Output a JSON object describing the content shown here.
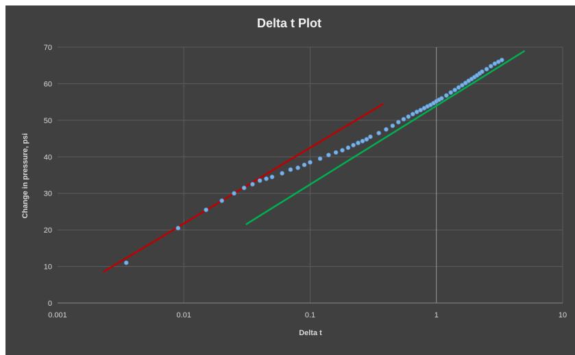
{
  "chart_data": {
    "type": "scatter",
    "title": "Delta t Plot",
    "xlabel": "Delta t",
    "ylabel": "Change in pressure, psi",
    "xscale": "log",
    "xlim": [
      0.001,
      10
    ],
    "ylim": [
      0,
      70
    ],
    "x_tick_labels": [
      "0.001",
      "0.01",
      "0.1",
      "1",
      "10"
    ],
    "y_tick_labels": [
      "0",
      "10",
      "20",
      "30",
      "40",
      "50",
      "60",
      "70"
    ],
    "grid": true,
    "legend": "none",
    "series": [
      {
        "marker": "circle",
        "color": "#5b9bd5",
        "x": [
          0.0035,
          0.009,
          0.015,
          0.02,
          0.025,
          0.03,
          0.035,
          0.04,
          0.045,
          0.05,
          0.06,
          0.07,
          0.08,
          0.09,
          0.1,
          0.12,
          0.14,
          0.16,
          0.18,
          0.2,
          0.22,
          0.24,
          0.26,
          0.28,
          0.3,
          0.35,
          0.4,
          0.45,
          0.5,
          0.55,
          0.6,
          0.65,
          0.7,
          0.75,
          0.8,
          0.85,
          0.9,
          0.95,
          1.0,
          1.05,
          1.1,
          1.2,
          1.3,
          1.4,
          1.5,
          1.6,
          1.7,
          1.8,
          1.9,
          2.0,
          2.1,
          2.2,
          2.3,
          2.5,
          2.7,
          2.9,
          3.1,
          3.3
        ],
        "y": [
          11,
          20.5,
          25.5,
          28,
          30,
          31.5,
          32.5,
          33.5,
          34,
          34.5,
          35.5,
          36.5,
          37,
          37.8,
          38.5,
          39.5,
          40.5,
          41.2,
          41.8,
          42.5,
          43.2,
          43.8,
          44.3,
          44.8,
          45.5,
          46.5,
          47.5,
          48.5,
          49.5,
          50.3,
          51,
          51.7,
          52.3,
          52.8,
          53.3,
          53.8,
          54.2,
          54.7,
          55.2,
          55.6,
          56,
          56.8,
          57.6,
          58.3,
          59,
          59.6,
          60.2,
          60.8,
          61.3,
          61.8,
          62.3,
          62.8,
          63.3,
          64,
          64.8,
          65.5,
          66,
          66.5
        ]
      }
    ],
    "trendlines": [
      {
        "color": "#c00000",
        "x": [
          0.0023,
          0.38
        ],
        "y": [
          8.5,
          54.5
        ]
      },
      {
        "color": "#00b050",
        "x": [
          0.031,
          5.0
        ],
        "y": [
          21.5,
          69
        ]
      }
    ]
  }
}
